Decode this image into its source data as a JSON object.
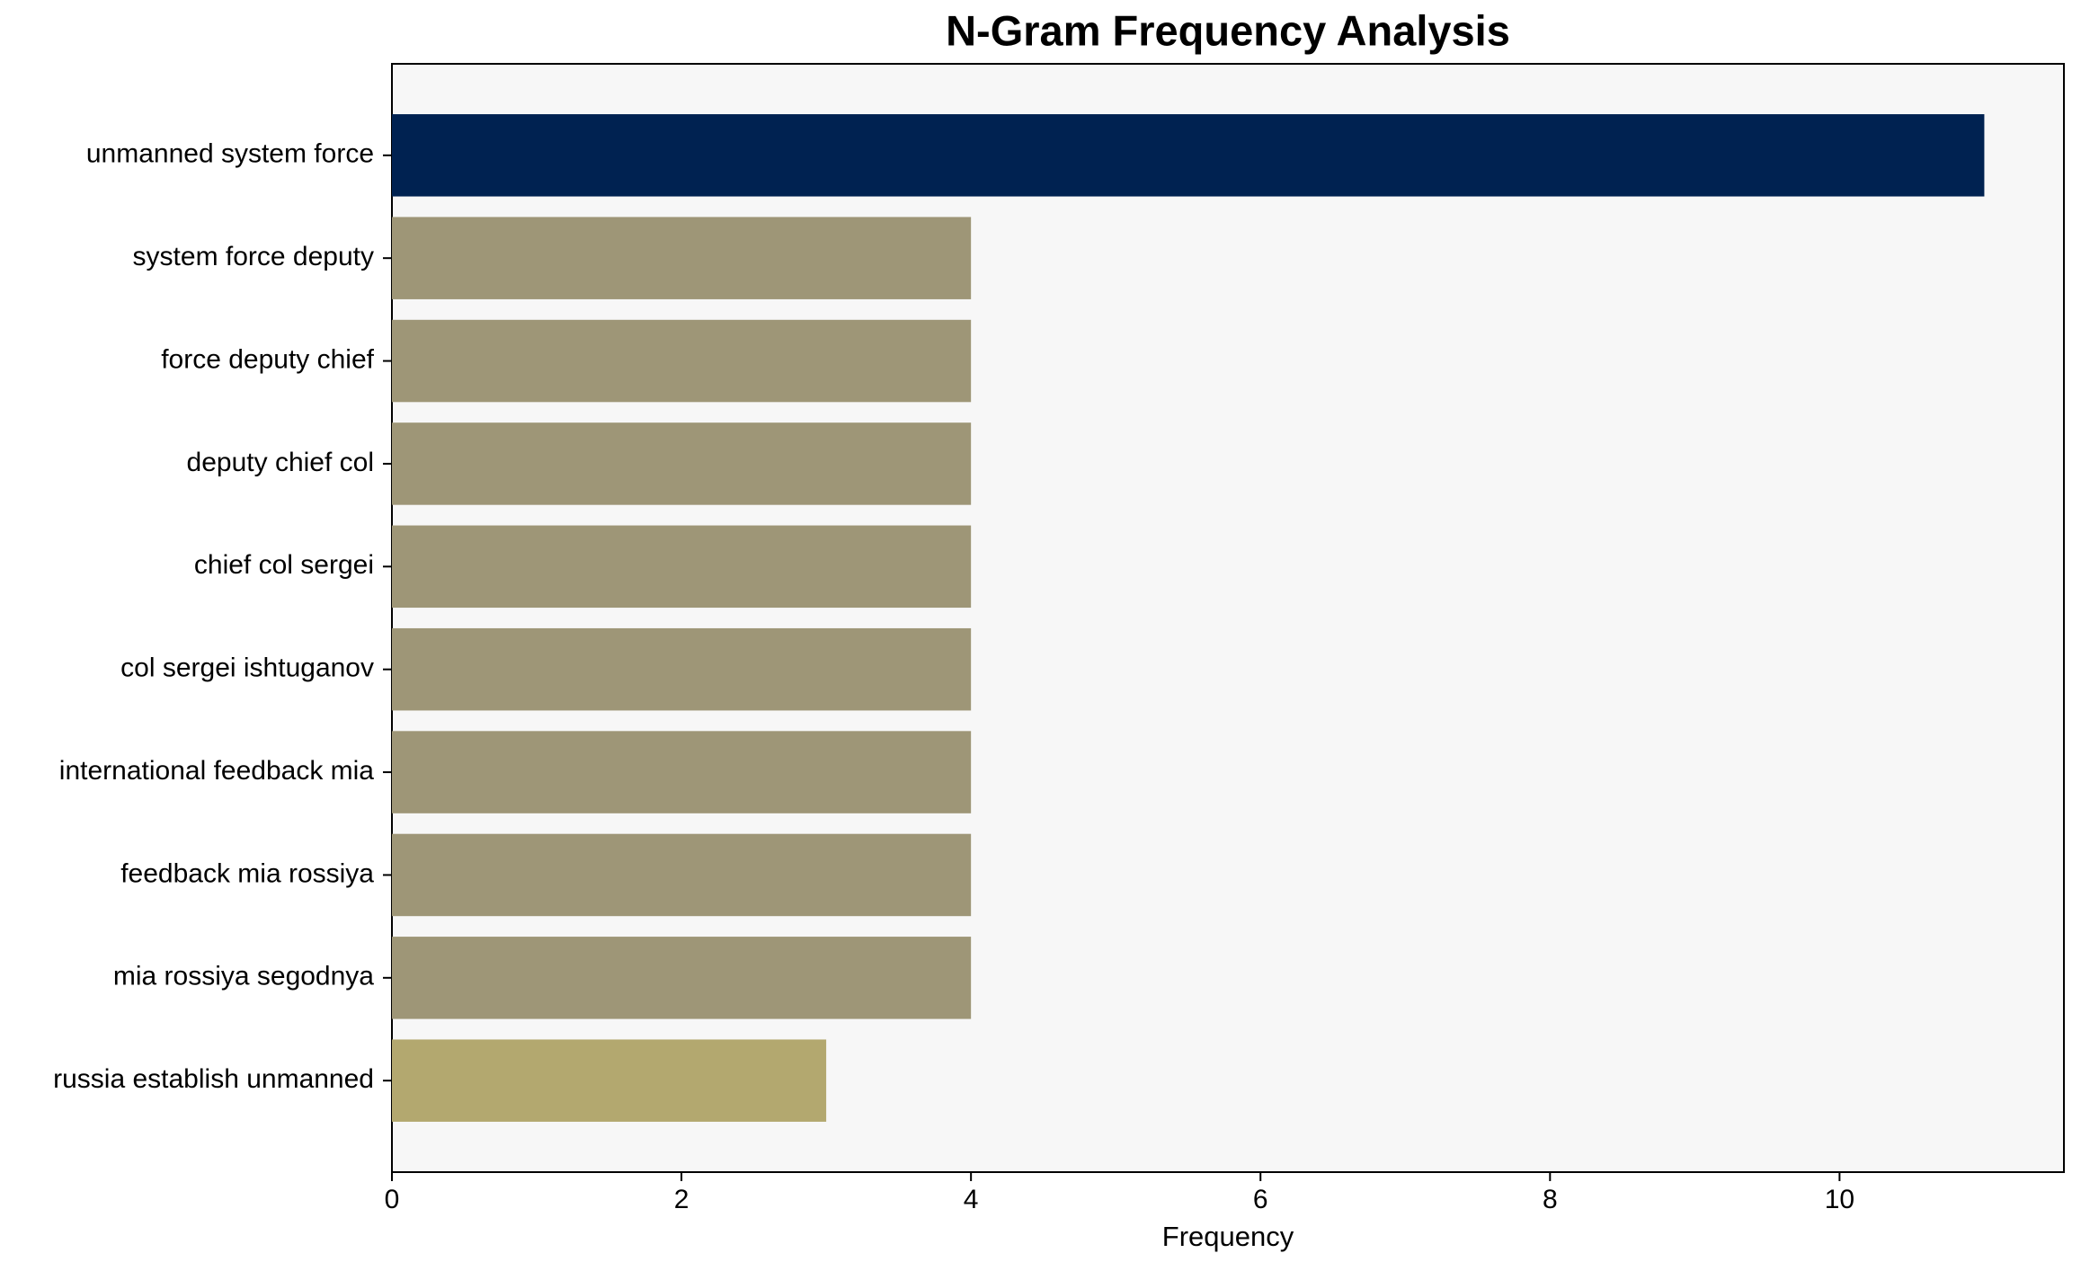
{
  "chart_data": {
    "type": "barh",
    "title": "N-Gram Frequency Analysis",
    "xlabel": "Frequency",
    "categories": [
      "unmanned system force",
      "system force deputy",
      "force deputy chief",
      "deputy chief col",
      "chief col sergei",
      "col sergei ishtuganov",
      "international feedback mia",
      "feedback mia rossiya",
      "mia rossiya segodnya",
      "russia establish unmanned"
    ],
    "values": [
      11,
      4,
      4,
      4,
      4,
      4,
      4,
      4,
      4,
      3
    ],
    "colors": [
      "#002251",
      "#9e9677",
      "#9e9677",
      "#9e9677",
      "#9e9677",
      "#9e9677",
      "#9e9677",
      "#9e9677",
      "#9e9677",
      "#b3a86f"
    ],
    "xlim": [
      0,
      11.55
    ],
    "xticks": [
      0,
      2,
      4,
      6,
      8,
      10
    ]
  }
}
